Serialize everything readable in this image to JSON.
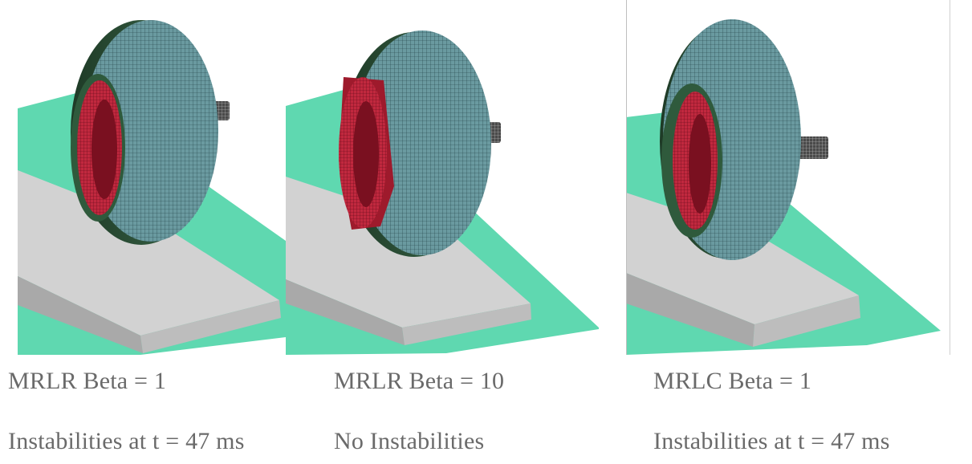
{
  "panels": [
    {
      "caption_title": "MRLR Beta = 1",
      "caption_status": "Instabilities at t = 47 ms"
    },
    {
      "caption_title": "MRLR Beta = 10",
      "caption_status": "No Instabilities"
    },
    {
      "caption_title": "MRLC Beta = 1",
      "caption_status": "Instabilities at t = 47 ms"
    }
  ],
  "colors": {
    "ground": "#5fd8b0",
    "curb_top": "#d2d2d2",
    "curb_side": "#a9a9a9",
    "tire": "#5f8f95",
    "rim": "#c1283e",
    "sidewall": "#2f5a3c",
    "axle": "#444444"
  }
}
